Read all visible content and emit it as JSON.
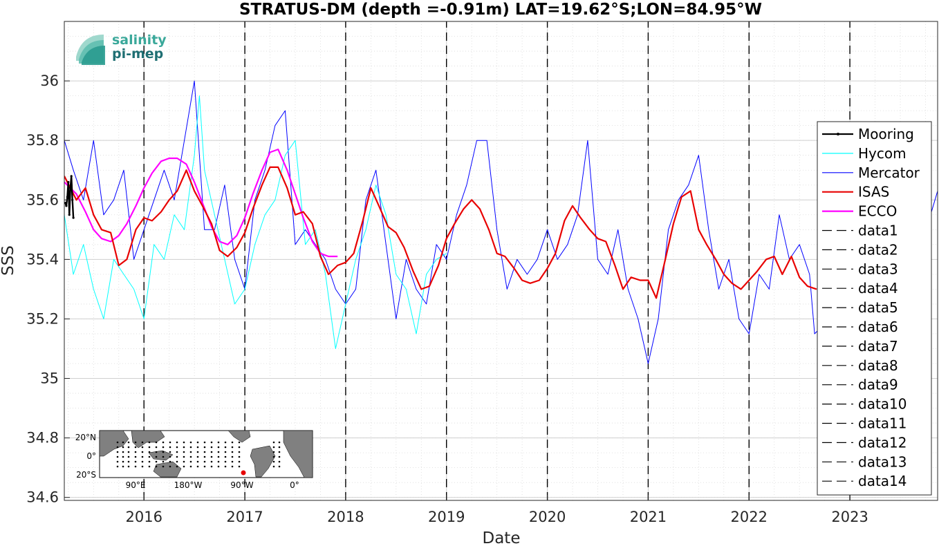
{
  "chart_data": {
    "type": "line",
    "title": "STRATUS-DM (depth =-0.91m) LAT=19.62°S;LON=84.95°W",
    "xlabel": "Date",
    "ylabel": "SSS",
    "xlim": [
      2015.21,
      2023.87
    ],
    "ylim": [
      34.59,
      36.2
    ],
    "xticks": [
      2016,
      2017,
      2018,
      2019,
      2020,
      2021,
      2022,
      2023
    ],
    "yticks": [
      34.6,
      34.8,
      35,
      35.2,
      35.4,
      35.6,
      35.8,
      36
    ],
    "yticklabels": [
      "34.6",
      "34.8",
      "35",
      "35.2",
      "35.4",
      "35.6",
      "35.8",
      "36"
    ],
    "grid": true,
    "legend_position": "right",
    "series": [
      {
        "name": "Mooring",
        "color": "#000000",
        "style": "line-dots",
        "x": [
          2015.22,
          2015.23,
          2015.24,
          2015.25,
          2015.26,
          2015.27,
          2015.28,
          2015.29,
          2015.3
        ],
        "y": [
          35.59,
          35.58,
          35.61,
          35.66,
          35.55,
          35.64,
          35.68,
          35.6,
          35.54
        ]
      },
      {
        "name": "Hycom",
        "color": "#00ffff",
        "style": "line",
        "x": [
          2015.21,
          2015.3,
          2015.4,
          2015.5,
          2015.6,
          2015.7,
          2015.8,
          2015.9,
          2016.0,
          2016.1,
          2016.2,
          2016.3,
          2016.4,
          2016.5,
          2016.55,
          2016.6,
          2016.7,
          2016.8,
          2016.9,
          2017.0,
          2017.1,
          2017.2,
          2017.3,
          2017.4,
          2017.5,
          2017.6,
          2017.7,
          2017.8,
          2017.9,
          2018.0,
          2018.1,
          2018.2,
          2018.3,
          2018.4,
          2018.5,
          2018.6,
          2018.7,
          2018.8,
          2018.9,
          2019.0
        ],
        "y": [
          35.55,
          35.35,
          35.45,
          35.3,
          35.2,
          35.4,
          35.35,
          35.3,
          35.2,
          35.45,
          35.4,
          35.55,
          35.5,
          35.75,
          35.95,
          35.7,
          35.55,
          35.4,
          35.25,
          35.3,
          35.45,
          35.55,
          35.6,
          35.75,
          35.8,
          35.45,
          35.5,
          35.35,
          35.1,
          35.25,
          35.4,
          35.5,
          35.65,
          35.55,
          35.35,
          35.3,
          35.15,
          35.35,
          35.4,
          35.42
        ]
      },
      {
        "name": "Mercator",
        "color": "#0000ff",
        "style": "line",
        "x": [
          2015.21,
          2015.3,
          2015.4,
          2015.5,
          2015.6,
          2015.7,
          2015.8,
          2015.9,
          2016.0,
          2016.1,
          2016.2,
          2016.3,
          2016.4,
          2016.5,
          2016.6,
          2016.7,
          2016.8,
          2016.9,
          2017.0,
          2017.1,
          2017.2,
          2017.3,
          2017.4,
          2017.5,
          2017.6,
          2017.7,
          2017.8,
          2017.9,
          2018.0,
          2018.1,
          2018.2,
          2018.3,
          2018.4,
          2018.5,
          2018.6,
          2018.7,
          2018.8,
          2018.9,
          2019.0,
          2019.1,
          2019.2,
          2019.3,
          2019.4,
          2019.5,
          2019.6,
          2019.7,
          2019.8,
          2019.9,
          2020.0,
          2020.1,
          2020.2,
          2020.3,
          2020.4,
          2020.5,
          2020.6,
          2020.7,
          2020.8,
          2020.9,
          2021.0,
          2021.1,
          2021.2,
          2021.3,
          2021.4,
          2021.5,
          2021.6,
          2021.7,
          2021.8,
          2021.9,
          2022.0,
          2022.1,
          2022.2,
          2022.3,
          2022.4,
          2022.5,
          2022.6,
          2022.65,
          2023.8,
          2023.87
        ],
        "y": [
          35.8,
          35.7,
          35.6,
          35.8,
          35.55,
          35.6,
          35.7,
          35.4,
          35.5,
          35.6,
          35.7,
          35.6,
          35.8,
          36.0,
          35.5,
          35.5,
          35.65,
          35.4,
          35.3,
          35.6,
          35.7,
          35.85,
          35.9,
          35.45,
          35.5,
          35.45,
          35.4,
          35.3,
          35.25,
          35.3,
          35.6,
          35.7,
          35.45,
          35.2,
          35.4,
          35.3,
          35.25,
          35.45,
          35.4,
          35.55,
          35.65,
          35.8,
          35.8,
          35.5,
          35.3,
          35.4,
          35.35,
          35.4,
          35.5,
          35.4,
          35.45,
          35.55,
          35.8,
          35.4,
          35.35,
          35.5,
          35.3,
          35.2,
          35.05,
          35.2,
          35.5,
          35.6,
          35.65,
          35.75,
          35.5,
          35.3,
          35.4,
          35.2,
          35.15,
          35.35,
          35.3,
          35.55,
          35.4,
          35.45,
          35.35,
          35.15,
          35.55,
          35.63
        ]
      },
      {
        "name": "ISAS",
        "color": "#e80000",
        "style": "line",
        "x": [
          2015.21,
          2015.33,
          2015.42,
          2015.5,
          2015.58,
          2015.67,
          2015.75,
          2015.83,
          2015.92,
          2016.0,
          2016.08,
          2016.17,
          2016.25,
          2016.33,
          2016.42,
          2016.5,
          2016.58,
          2016.67,
          2016.75,
          2016.83,
          2016.92,
          2017.0,
          2017.08,
          2017.17,
          2017.25,
          2017.33,
          2017.42,
          2017.5,
          2017.58,
          2017.67,
          2017.75,
          2017.83,
          2017.92,
          2018.0,
          2018.08,
          2018.17,
          2018.25,
          2018.33,
          2018.42,
          2018.5,
          2018.58,
          2018.67,
          2018.75,
          2018.83,
          2018.92,
          2019.0,
          2019.08,
          2019.17,
          2019.25,
          2019.33,
          2019.42,
          2019.5,
          2019.58,
          2019.67,
          2019.75,
          2019.83,
          2019.92,
          2020.0,
          2020.08,
          2020.17,
          2020.25,
          2020.33,
          2020.42,
          2020.5,
          2020.58,
          2020.67,
          2020.75,
          2020.83,
          2020.92,
          2021.0,
          2021.08,
          2021.17,
          2021.25,
          2021.33,
          2021.42,
          2021.5,
          2021.58,
          2021.67,
          2021.75,
          2021.83,
          2021.92,
          2022.0,
          2022.08,
          2022.17,
          2022.25,
          2022.33,
          2022.42,
          2022.5,
          2022.58,
          2022.67
        ],
        "y": [
          35.68,
          35.6,
          35.64,
          35.55,
          35.5,
          35.49,
          35.38,
          35.4,
          35.5,
          35.54,
          35.53,
          35.56,
          35.6,
          35.63,
          35.7,
          35.63,
          35.58,
          35.52,
          35.43,
          35.41,
          35.44,
          35.49,
          35.57,
          35.65,
          35.71,
          35.71,
          35.64,
          35.55,
          35.56,
          35.52,
          35.41,
          35.35,
          35.38,
          35.39,
          35.42,
          35.53,
          35.64,
          35.58,
          35.51,
          35.49,
          35.44,
          35.36,
          35.3,
          35.31,
          35.38,
          35.47,
          35.52,
          35.57,
          35.6,
          35.57,
          35.5,
          35.42,
          35.41,
          35.37,
          35.33,
          35.32,
          35.33,
          35.37,
          35.42,
          35.53,
          35.58,
          35.54,
          35.5,
          35.47,
          35.46,
          35.38,
          35.3,
          35.34,
          35.33,
          35.33,
          35.27,
          35.4,
          35.52,
          35.61,
          35.63,
          35.5,
          35.45,
          35.4,
          35.35,
          35.32,
          35.3,
          35.33,
          35.36,
          35.4,
          35.41,
          35.35,
          35.41,
          35.34,
          35.31,
          35.3
        ]
      },
      {
        "name": "ECCO",
        "color": "#ff00ff",
        "style": "line",
        "x": [
          2015.21,
          2015.33,
          2015.42,
          2015.5,
          2015.58,
          2015.67,
          2015.75,
          2015.83,
          2015.92,
          2016.0,
          2016.08,
          2016.17,
          2016.25,
          2016.33,
          2016.42,
          2016.5,
          2016.58,
          2016.67,
          2016.75,
          2016.83,
          2016.92,
          2017.0,
          2017.08,
          2017.17,
          2017.25,
          2017.33,
          2017.42,
          2017.5,
          2017.58,
          2017.67,
          2017.75,
          2017.83,
          2017.92
        ],
        "y": [
          35.66,
          35.62,
          35.56,
          35.5,
          35.47,
          35.46,
          35.48,
          35.52,
          35.58,
          35.64,
          35.69,
          35.73,
          35.74,
          35.74,
          35.72,
          35.66,
          35.59,
          35.51,
          35.46,
          35.45,
          35.48,
          35.54,
          35.62,
          35.7,
          35.76,
          35.77,
          35.7,
          35.62,
          35.54,
          35.46,
          35.42,
          35.41,
          35.41
        ]
      },
      {
        "name": "data1",
        "color": "#000000",
        "style": "dashed",
        "x": [
          2016,
          2016
        ],
        "y": [
          34.59,
          36.2
        ]
      },
      {
        "name": "data2",
        "color": "#000000",
        "style": "dashed",
        "x": [
          2017,
          2017
        ],
        "y": [
          34.59,
          36.2
        ]
      },
      {
        "name": "data3",
        "color": "#000000",
        "style": "dashed",
        "x": [
          2018,
          2018
        ],
        "y": [
          34.59,
          36.2
        ]
      },
      {
        "name": "data4",
        "color": "#000000",
        "style": "dashed",
        "x": [
          2019,
          2019
        ],
        "y": [
          34.59,
          36.2
        ]
      },
      {
        "name": "data5",
        "color": "#000000",
        "style": "dashed",
        "x": [
          2020,
          2020
        ],
        "y": [
          34.59,
          36.2
        ]
      },
      {
        "name": "data6",
        "color": "#000000",
        "style": "dashed",
        "x": [
          2021,
          2021
        ],
        "y": [
          34.59,
          36.2
        ]
      },
      {
        "name": "data7",
        "color": "#000000",
        "style": "dashed",
        "x": [
          2022,
          2022
        ],
        "y": [
          34.59,
          36.2
        ]
      },
      {
        "name": "data8",
        "color": "#000000",
        "style": "dashed",
        "x": [
          2023,
          2023
        ],
        "y": [
          34.59,
          36.2
        ]
      },
      {
        "name": "data9",
        "color": "#000000",
        "style": "dashed",
        "x": [],
        "y": []
      },
      {
        "name": "data10",
        "color": "#000000",
        "style": "dashed",
        "x": [],
        "y": []
      },
      {
        "name": "data11",
        "color": "#000000",
        "style": "dashed",
        "x": [],
        "y": []
      },
      {
        "name": "data12",
        "color": "#000000",
        "style": "dashed",
        "x": [],
        "y": []
      },
      {
        "name": "data13",
        "color": "#000000",
        "style": "dashed",
        "x": [],
        "y": []
      },
      {
        "name": "data14",
        "color": "#000000",
        "style": "dashed",
        "x": [],
        "y": []
      }
    ]
  },
  "logo": {
    "line1": "salinity",
    "line2": "pi-mep"
  },
  "inset_map": {
    "ytick_labels": [
      "20°N",
      "0°",
      "20°S"
    ],
    "xtick_labels": [
      "90°E",
      "180°W",
      "90°W",
      "0°"
    ],
    "marker_color": "#e60000"
  }
}
